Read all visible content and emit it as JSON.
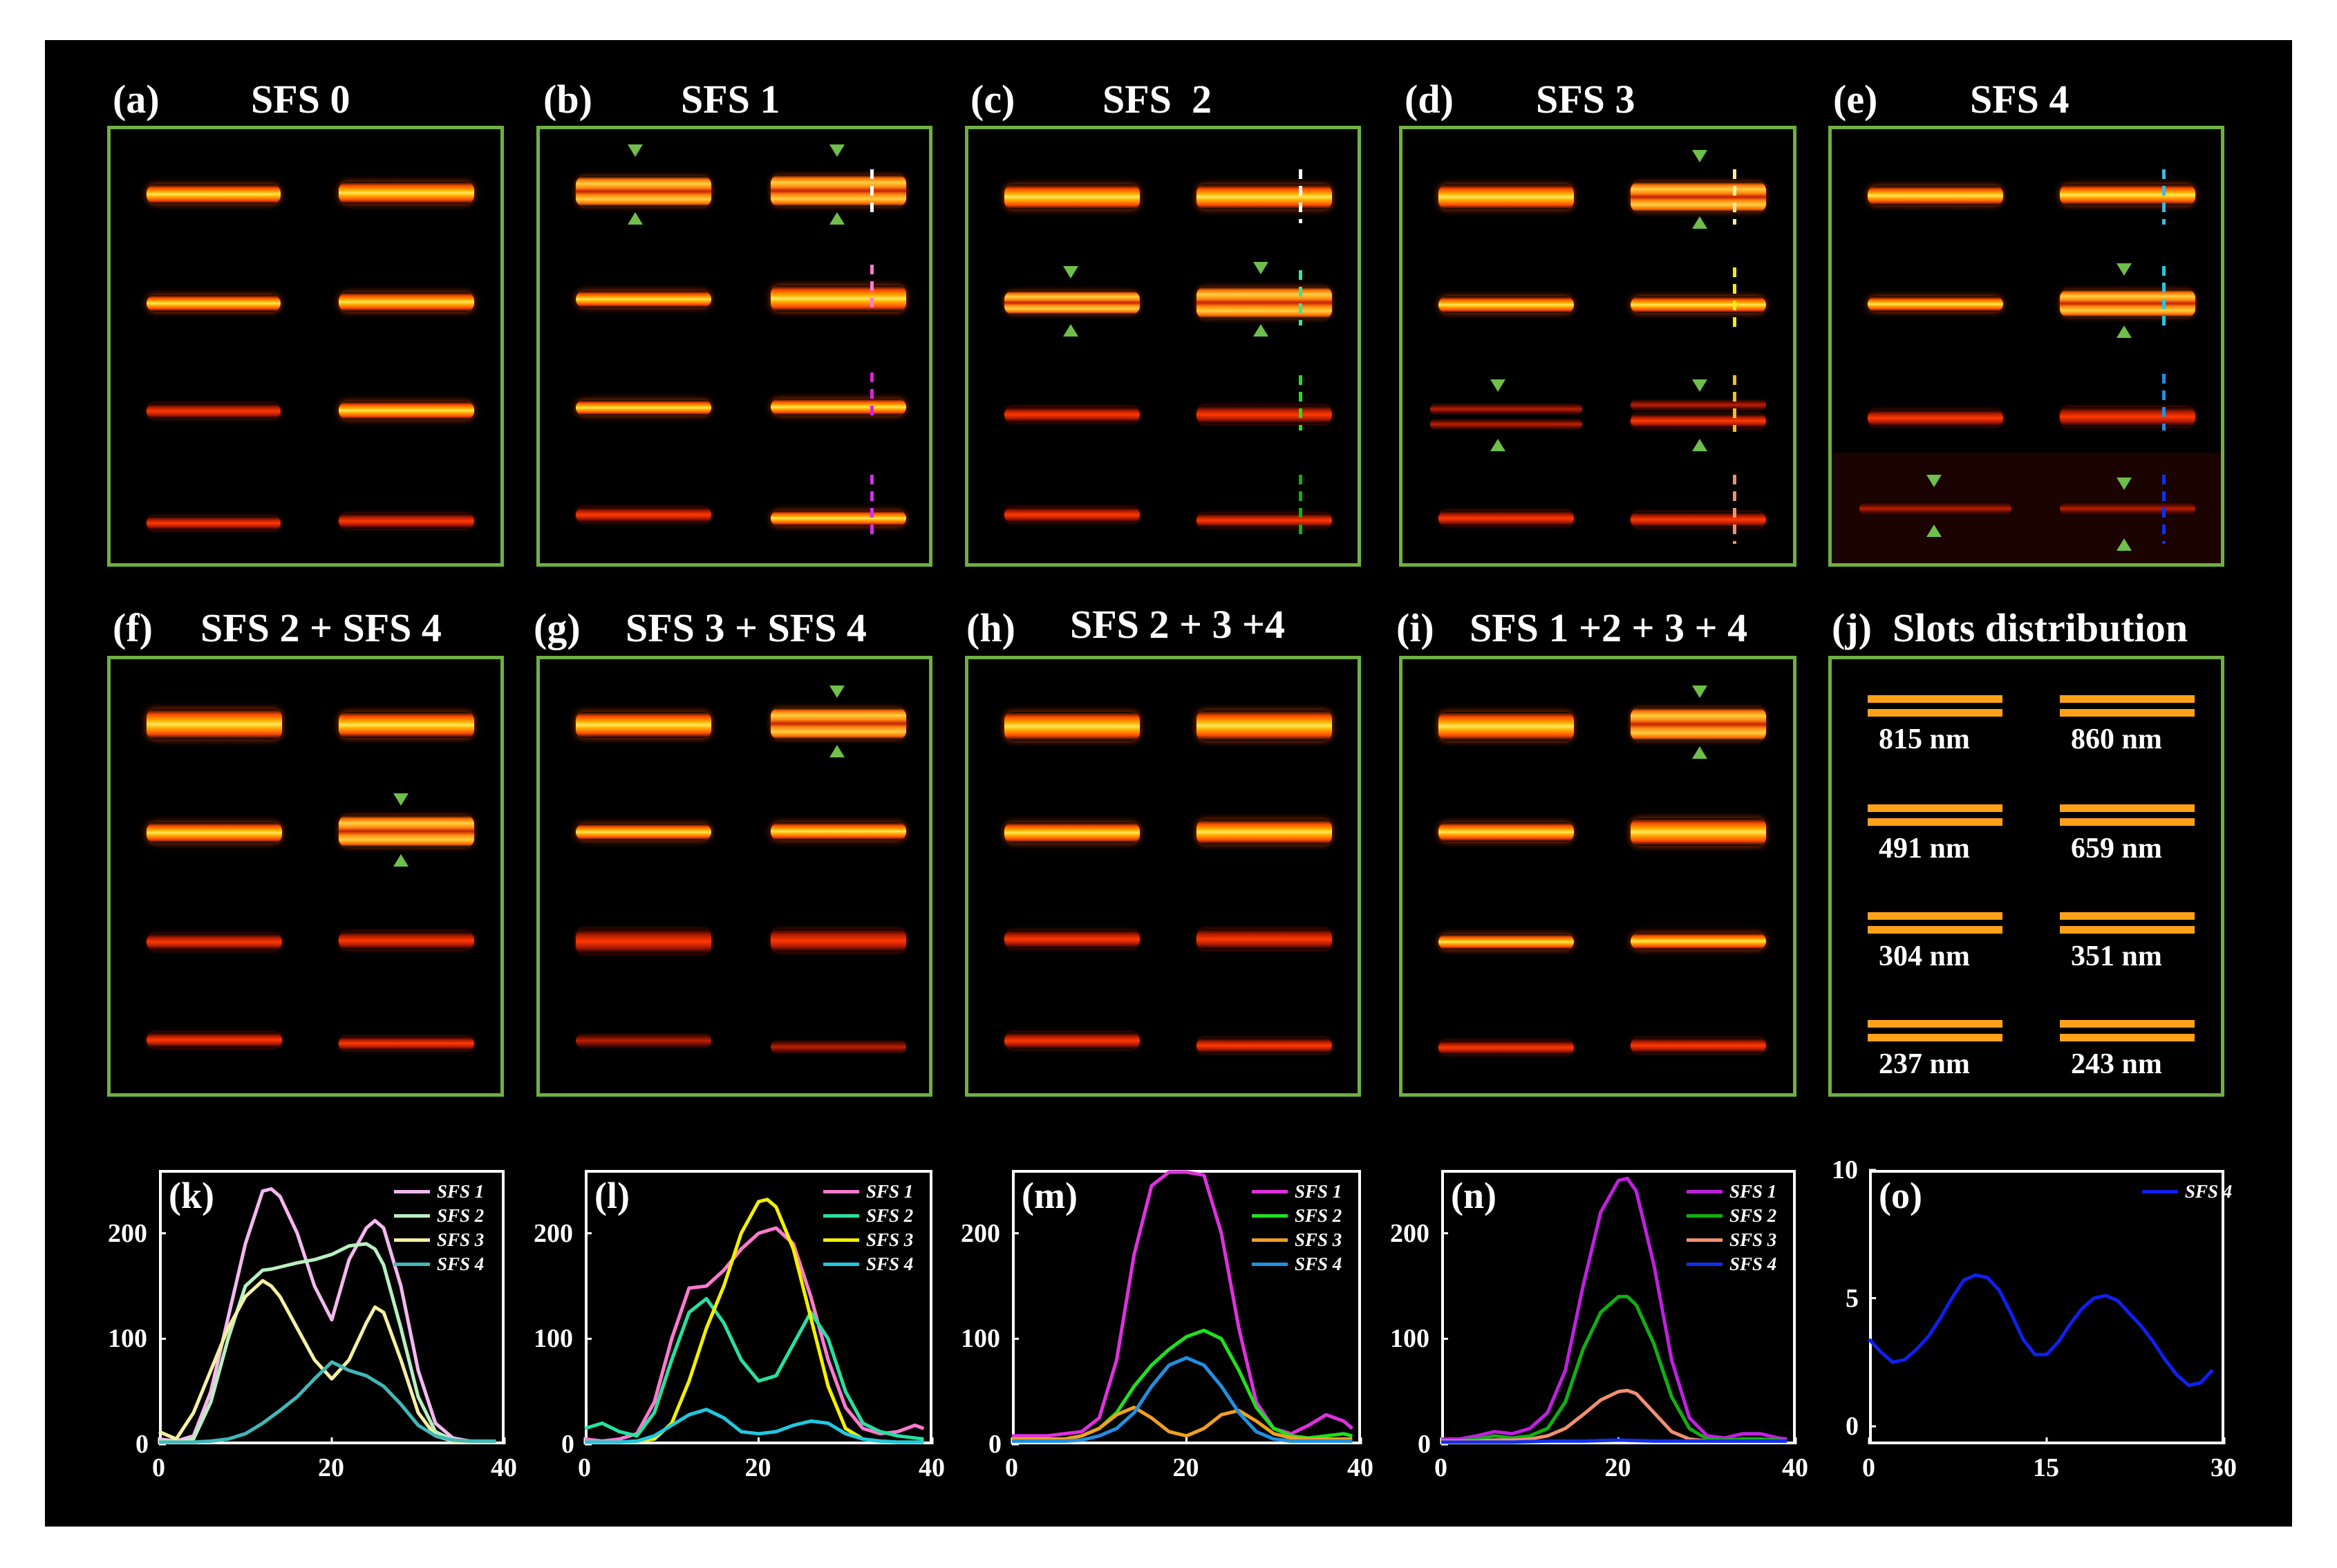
{
  "panels": [
    {
      "letter": "(a)",
      "title": "SFS 0"
    },
    {
      "letter": "(b)",
      "title": "SFS 1"
    },
    {
      "letter": "(c)",
      "title": "SFS  2"
    },
    {
      "letter": "(d)",
      "title": "SFS 3"
    },
    {
      "letter": "(e)",
      "title": "SFS 4"
    },
    {
      "letter": "(f)",
      "title": "SFS 2 + SFS 4"
    },
    {
      "letter": "(g)",
      "title": "SFS 3 + SFS 4"
    },
    {
      "letter": "(h)",
      "title": "SFS 2 + 3 +4"
    },
    {
      "letter": "(i)",
      "title": "SFS 1 +2 + 3 + 4"
    },
    {
      "letter": "(j)",
      "title": "Slots distribution"
    }
  ],
  "slots": {
    "labels": [
      "815 nm",
      "860 nm",
      "491 nm",
      "659 nm",
      "304 nm",
      "351 nm",
      "237 nm",
      "243 nm"
    ],
    "color": "#ffa11a"
  },
  "colors": {
    "background": "#000000",
    "panel_border": "#6fb043",
    "marker": "#6fbf4a"
  },
  "chart_data": [
    {
      "type": "line",
      "label": "(k)",
      "xlim": [
        0,
        40
      ],
      "ylim": [
        0,
        260
      ],
      "xticks": [
        0,
        20,
        40
      ],
      "yticks": [
        0,
        100,
        200
      ],
      "series": [
        {
          "name": "SFS 1",
          "color": "#f4b8ee",
          "x": [
            0,
            2,
            4,
            6,
            8,
            10,
            12,
            13,
            14,
            16,
            18,
            20,
            22,
            24,
            25,
            26,
            28,
            30,
            32,
            34,
            36,
            38,
            39
          ],
          "y": [
            5,
            3,
            8,
            50,
            120,
            190,
            240,
            242,
            235,
            200,
            150,
            118,
            175,
            205,
            212,
            205,
            150,
            70,
            20,
            6,
            3,
            2,
            3
          ]
        },
        {
          "name": "SFS 2",
          "color": "#b8f0c0",
          "x": [
            0,
            2,
            4,
            6,
            8,
            10,
            12,
            13,
            14,
            16,
            18,
            20,
            22,
            24,
            25,
            26,
            28,
            30,
            32,
            34,
            36,
            38,
            39
          ],
          "y": [
            3,
            2,
            5,
            40,
            100,
            150,
            165,
            166,
            168,
            172,
            175,
            180,
            188,
            190,
            185,
            170,
            110,
            45,
            12,
            4,
            3,
            2,
            3
          ]
        },
        {
          "name": "SFS 3",
          "color": "#f5f0a0",
          "x": [
            0,
            2,
            4,
            6,
            8,
            10,
            12,
            13,
            14,
            16,
            18,
            20,
            22,
            24,
            25,
            26,
            28,
            30,
            32,
            34,
            36,
            38,
            39
          ],
          "y": [
            12,
            5,
            30,
            70,
            110,
            140,
            155,
            150,
            140,
            110,
            80,
            62,
            80,
            115,
            130,
            125,
            80,
            30,
            8,
            3,
            2,
            2,
            2
          ]
        },
        {
          "name": "SFS 4",
          "color": "#40b8b8",
          "x": [
            0,
            2,
            4,
            6,
            8,
            10,
            12,
            14,
            16,
            18,
            20,
            22,
            24,
            26,
            28,
            30,
            32,
            34,
            36,
            38,
            39
          ],
          "y": [
            2,
            2,
            2,
            3,
            5,
            10,
            20,
            32,
            45,
            62,
            78,
            70,
            65,
            55,
            38,
            18,
            8,
            4,
            3,
            3,
            3
          ]
        }
      ]
    },
    {
      "type": "line",
      "label": "(l)",
      "xlim": [
        0,
        40
      ],
      "ylim": [
        0,
        260
      ],
      "xticks": [
        0,
        20,
        40
      ],
      "yticks": [
        0,
        100,
        200
      ],
      "series": [
        {
          "name": "SFS 1",
          "color": "#ff7ad0",
          "x": [
            0,
            2,
            4,
            6,
            8,
            10,
            12,
            14,
            16,
            18,
            20,
            22,
            24,
            26,
            28,
            30,
            32,
            34,
            36,
            38,
            39
          ],
          "y": [
            5,
            3,
            5,
            10,
            40,
            100,
            148,
            150,
            165,
            185,
            200,
            205,
            190,
            140,
            80,
            35,
            15,
            10,
            12,
            18,
            15
          ]
        },
        {
          "name": "SFS 2",
          "color": "#28e0a0",
          "x": [
            0,
            2,
            4,
            6,
            8,
            10,
            12,
            14,
            16,
            18,
            20,
            22,
            24,
            26,
            28,
            30,
            32,
            34,
            36,
            38,
            39
          ],
          "y": [
            15,
            20,
            12,
            8,
            30,
            80,
            125,
            138,
            115,
            80,
            60,
            65,
            95,
            125,
            100,
            50,
            20,
            12,
            8,
            6,
            5
          ]
        },
        {
          "name": "SFS 3",
          "color": "#f2f000",
          "x": [
            0,
            2,
            4,
            6,
            8,
            10,
            12,
            14,
            16,
            18,
            20,
            21,
            22,
            24,
            26,
            28,
            30,
            32,
            34,
            36,
            38,
            39
          ],
          "y": [
            2,
            2,
            2,
            3,
            5,
            20,
            60,
            110,
            150,
            200,
            230,
            232,
            225,
            185,
            120,
            55,
            15,
            5,
            3,
            2,
            2,
            2
          ]
        },
        {
          "name": "SFS 4",
          "color": "#20c8e0",
          "x": [
            0,
            2,
            4,
            6,
            8,
            10,
            12,
            14,
            16,
            18,
            20,
            22,
            24,
            26,
            28,
            30,
            32,
            34,
            36,
            38,
            39
          ],
          "y": [
            2,
            2,
            2,
            3,
            8,
            18,
            28,
            33,
            25,
            12,
            10,
            12,
            18,
            22,
            20,
            10,
            5,
            3,
            2,
            2,
            2
          ]
        }
      ]
    },
    {
      "type": "line",
      "label": "(m)",
      "xlim": [
        0,
        40
      ],
      "ylim": [
        0,
        260
      ],
      "xticks": [
        0,
        20,
        40
      ],
      "yticks": [
        0,
        100,
        200
      ],
      "series": [
        {
          "name": "SFS 1",
          "color": "#e030e0",
          "x": [
            0,
            2,
            4,
            6,
            8,
            10,
            12,
            14,
            16,
            18,
            20,
            22,
            24,
            26,
            28,
            30,
            32,
            34,
            36,
            38,
            39
          ],
          "y": [
            8,
            8,
            8,
            10,
            12,
            25,
            80,
            180,
            245,
            258,
            258,
            255,
            200,
            110,
            40,
            15,
            10,
            18,
            28,
            22,
            15
          ]
        },
        {
          "name": "SFS 2",
          "color": "#20e020",
          "x": [
            0,
            2,
            4,
            6,
            8,
            10,
            12,
            14,
            16,
            18,
            20,
            22,
            24,
            26,
            28,
            30,
            32,
            34,
            36,
            38,
            39
          ],
          "y": [
            5,
            5,
            5,
            5,
            8,
            15,
            30,
            55,
            75,
            90,
            102,
            108,
            100,
            70,
            35,
            15,
            8,
            6,
            8,
            10,
            8
          ]
        },
        {
          "name": "SFS 3",
          "color": "#f0a020",
          "x": [
            0,
            2,
            4,
            6,
            8,
            10,
            12,
            14,
            16,
            18,
            20,
            22,
            24,
            26,
            28,
            30,
            32,
            34,
            36,
            38,
            39
          ],
          "y": [
            5,
            5,
            5,
            5,
            8,
            15,
            28,
            35,
            25,
            12,
            8,
            15,
            28,
            32,
            22,
            10,
            6,
            5,
            5,
            5,
            5
          ]
        },
        {
          "name": "SFS 4",
          "color": "#2090e0",
          "x": [
            0,
            2,
            4,
            6,
            8,
            10,
            12,
            14,
            16,
            18,
            20,
            22,
            24,
            26,
            28,
            30,
            32,
            34,
            36,
            38,
            39
          ],
          "y": [
            3,
            3,
            3,
            3,
            4,
            8,
            15,
            30,
            55,
            75,
            82,
            75,
            55,
            30,
            12,
            5,
            3,
            3,
            3,
            3,
            3
          ]
        }
      ]
    },
    {
      "type": "line",
      "label": "(n)",
      "xlim": [
        0,
        40
      ],
      "ylim": [
        0,
        260
      ],
      "xticks": [
        0,
        20,
        40
      ],
      "yticks": [
        0,
        100,
        200
      ],
      "series": [
        {
          "name": "SFS 1",
          "color": "#c020e0",
          "x": [
            0,
            2,
            4,
            6,
            8,
            10,
            12,
            14,
            16,
            18,
            20,
            21,
            22,
            24,
            26,
            28,
            30,
            32,
            34,
            36,
            38,
            39
          ],
          "y": [
            5,
            5,
            8,
            12,
            10,
            15,
            30,
            70,
            150,
            220,
            250,
            252,
            240,
            170,
            80,
            25,
            8,
            6,
            10,
            10,
            6,
            5
          ]
        },
        {
          "name": "SFS 2",
          "color": "#10b010",
          "x": [
            0,
            2,
            4,
            6,
            8,
            10,
            12,
            14,
            16,
            18,
            20,
            21,
            22,
            24,
            26,
            28,
            30,
            32,
            34,
            36,
            38,
            39
          ],
          "y": [
            3,
            3,
            5,
            8,
            6,
            8,
            15,
            40,
            90,
            125,
            140,
            140,
            132,
            95,
            45,
            15,
            5,
            4,
            5,
            5,
            4,
            3
          ]
        },
        {
          "name": "SFS 3",
          "color": "#f09070",
          "x": [
            0,
            2,
            4,
            6,
            8,
            10,
            12,
            14,
            16,
            18,
            20,
            21,
            22,
            24,
            26,
            28,
            30,
            32,
            34,
            36,
            38,
            39
          ],
          "y": [
            3,
            3,
            3,
            4,
            4,
            5,
            8,
            15,
            28,
            42,
            50,
            51,
            48,
            30,
            12,
            5,
            3,
            3,
            3,
            3,
            3,
            3
          ]
        },
        {
          "name": "SFS 4",
          "color": "#1030f0",
          "x": [
            0,
            4,
            8,
            12,
            16,
            20,
            24,
            28,
            32,
            36,
            39
          ],
          "y": [
            2,
            2,
            2,
            3,
            3,
            4,
            3,
            3,
            3,
            3,
            3
          ]
        }
      ]
    },
    {
      "type": "line",
      "label": "(o)",
      "xlim": [
        0,
        30
      ],
      "ylim": [
        -0.7,
        10
      ],
      "xticks": [
        0,
        15,
        30
      ],
      "yticks": [
        0,
        5,
        10
      ],
      "series": [
        {
          "name": "SFS 4",
          "color": "#1020f0",
          "x": [
            0,
            1,
            2,
            3,
            4,
            5,
            6,
            7,
            8,
            9,
            10,
            11,
            12,
            13,
            14,
            15,
            16,
            17,
            18,
            19,
            20,
            21,
            22,
            23,
            24,
            25,
            26,
            27,
            28,
            29
          ],
          "y": [
            3.4,
            2.9,
            2.5,
            2.6,
            3.0,
            3.5,
            4.2,
            5.0,
            5.7,
            5.9,
            5.8,
            5.3,
            4.4,
            3.4,
            2.8,
            2.8,
            3.3,
            4.0,
            4.6,
            5.0,
            5.1,
            4.9,
            4.4,
            3.9,
            3.3,
            2.6,
            2.0,
            1.6,
            1.7,
            2.2
          ]
        }
      ]
    }
  ]
}
